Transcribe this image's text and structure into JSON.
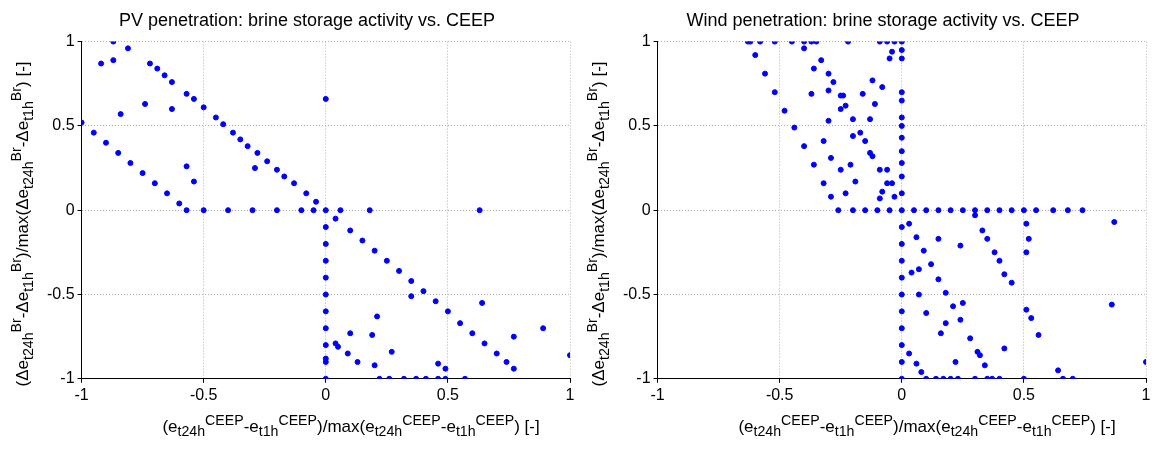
{
  "chart_data": [
    {
      "type": "scatter",
      "title": "PV penetration: brine storage activity vs. CEEP",
      "xlabel": "(e$_{t24h}$$^{CEEP}$-e$_{t1h}$$^{CEEP}$)/max(e$_{t24h}$$^{CEEP}$-e$_{t1h}$$^{CEEP}$) [-]",
      "ylabel": "(Δe$_{t24h}$$^{Br}$-Δe$_{t1h}$$^{Br}$)/max(Δe$_{t24h}$$^{Br}$-Δe$_{t1h}$$^{Br}$) [-]",
      "xlim": [
        -1,
        1
      ],
      "ylim": [
        -1,
        1
      ],
      "xticks": [
        -1,
        -0.5,
        0,
        0.5,
        1
      ],
      "yticks": [
        -1,
        -0.5,
        0,
        0.5,
        1
      ],
      "grid": true,
      "marker": "circle",
      "series": [
        {
          "color": "#0000ff",
          "x": [
            -1,
            -0.95,
            -0.9,
            -0.85,
            -0.8,
            -0.75,
            -0.7,
            -0.65,
            -0.6,
            -0.57,
            -0.5,
            -0.4,
            -0.3,
            -0.2,
            -0.1,
            -0.05,
            0,
            -0.72,
            -0.69,
            -0.66,
            -0.63,
            -0.57,
            -0.54,
            -0.5,
            -0.45,
            -0.42,
            -0.38,
            -0.35,
            -0.32,
            -0.28,
            -0.24,
            -0.2,
            -0.17,
            -0.13,
            -0.08,
            -0.04,
            0.04,
            0.1,
            0.15,
            0.2,
            0.25,
            0.3,
            0.35,
            0.4,
            0.45,
            0.5,
            0.55,
            0.6,
            0.65,
            0.7,
            0.74,
            0.77,
            0,
            0,
            0,
            0,
            0,
            0,
            0,
            0,
            0,
            0,
            0,
            -0.92,
            -0.87,
            -0.87,
            -0.81,
            -0.84,
            -0.74,
            -0.63,
            -0.57,
            -0.54,
            -0.29,
            0,
            0.06,
            0.18,
            0.63,
            0.35,
            0.64,
            0.21,
            0.1,
            0.19,
            0.04,
            0.05,
            0.09,
            0.13,
            0.27,
            0.2,
            0.46,
            0.49,
            0.77,
            0.89,
            1,
            0.22,
            0.26,
            0.32,
            0.37,
            0.41,
            0.46,
            0.49,
            0.57
          ],
          "values": [
            0.52,
            0.46,
            0.4,
            0.34,
            0.28,
            0.22,
            0.16,
            0.1,
            0.04,
            0,
            0,
            0,
            0,
            0,
            0,
            0,
            0,
            0.87,
            0.84,
            0.8,
            0.76,
            0.69,
            0.66,
            0.61,
            0.55,
            0.51,
            0.46,
            0.42,
            0.38,
            0.34,
            0.29,
            0.24,
            0.2,
            0.16,
            0.1,
            0.05,
            -0.05,
            -0.12,
            -0.18,
            -0.24,
            -0.3,
            -0.36,
            -0.42,
            -0.48,
            -0.54,
            -0.6,
            -0.67,
            -0.73,
            -0.79,
            -0.85,
            -0.9,
            -0.94,
            -0.1,
            -0.2,
            -0.3,
            -0.4,
            -0.5,
            -0.6,
            -0.7,
            -0.8,
            -0.88,
            -0.9,
            -1,
            0.87,
            1,
            0.89,
            0.96,
            0.57,
            0.63,
            0.6,
            0.26,
            0.17,
            0.25,
            0.66,
            0,
            0,
            0,
            -0.51,
            -0.55,
            -0.63,
            -0.73,
            -0.74,
            -0.79,
            -0.81,
            -0.85,
            -0.9,
            -0.84,
            -0.92,
            -0.91,
            -0.94,
            -0.75,
            -0.7,
            -0.86,
            -1,
            -1,
            -1,
            -1,
            -1,
            -1,
            -1,
            -1
          ]
        }
      ]
    },
    {
      "type": "scatter",
      "title": "Wind penetration: brine storage activity vs. CEEP",
      "xlabel": "(e$_{t24h}$$^{CEEP}$-e$_{t1h}$$^{CEEP}$)/max(e$_{t24h}$$^{CEEP}$-e$_{t1h}$$^{CEEP}$) [-]",
      "ylabel": "(Δe$_{t24h}$$^{Br}$-Δe$_{t1h}$$^{Br}$)/max(Δe$_{t24h}$$^{Br}$-Δe$_{t1h}$$^{Br}$) [-]",
      "xlim": [
        -1,
        1
      ],
      "ylim": [
        -1,
        1
      ],
      "xticks": [
        -1,
        -0.5,
        0,
        0.5,
        1
      ],
      "yticks": [
        -1,
        -0.5,
        0,
        0.5,
        1
      ],
      "grid": true,
      "marker": "circle",
      "series": [
        {
          "color": "#0000ff",
          "x": [
            -0.63,
            -0.6,
            -0.56,
            -0.52,
            -0.48,
            -0.44,
            -0.4,
            -0.36,
            -0.32,
            -0.29,
            -0.26,
            -0.2,
            -0.15,
            -0.1,
            -0.05,
            0,
            0.05,
            0.1,
            0.15,
            0.2,
            0.25,
            0.3,
            0.35,
            0.4,
            0.45,
            0.5,
            0.55,
            0.62,
            0.68,
            0.74,
            -0.62,
            -0.58,
            -0.52,
            -0.45,
            -0.4,
            -0.37,
            -0.35,
            -0.22,
            -0.09,
            -0.06,
            -0.03,
            0,
            -0.33,
            -0.3,
            -0.28,
            -0.25,
            -0.23,
            -0.2,
            -0.17,
            -0.15,
            -0.12,
            -0.09,
            -0.06,
            -0.03,
            0.03,
            0.06,
            0.09,
            0.12,
            0.15,
            0.18,
            0.21,
            0.24,
            0.28,
            0.31,
            0.34,
            0.37,
            0,
            0,
            0,
            0,
            0,
            0,
            0,
            0,
            0,
            0,
            0,
            0,
            0,
            0,
            0,
            0,
            0,
            0,
            0,
            0,
            0,
            0.3,
            0.33,
            0.35,
            0.38,
            0.4,
            0.42,
            0.45,
            0.03,
            0.06,
            0.08,
            0.1,
            0.14,
            0.17,
            0.2,
            0.23,
            0.3,
            0.35,
            0.4,
            0.5,
            0.66,
            0.7,
            0.51,
            0.52,
            0.51,
            0.51,
            0.53,
            0.56,
            0.87,
            0.86,
            1,
            0.64,
            0.42,
            0.32,
            0.22,
            0.16,
            0.18,
            0.1,
            0.07,
            0.07,
            0.04,
            0.15,
            0.24,
            0.25,
            -0.12,
            -0.16,
            -0.08,
            -0.11,
            -0.13,
            -0.06,
            -0.04,
            -0.08,
            -0.09,
            -0.23,
            -0.19,
            -0.21,
            -0.25,
            -0.29,
            -0.32,
            -0.3,
            -0.37,
            -0.3,
            -0.24,
            -0.25,
            -0.2,
            -0.13,
            -0.05,
            -0.04,
            -0.4,
            -0.36
          ],
          "values": [
            1,
            0.92,
            0.81,
            0.7,
            0.59,
            0.49,
            0.38,
            0.27,
            0.16,
            0.08,
            0,
            0,
            0,
            0,
            0,
            0,
            0,
            0,
            0,
            0,
            0,
            0,
            0,
            0,
            0,
            0,
            0,
            0,
            0,
            0,
            1,
            1,
            1,
            1,
            1,
            1,
            1,
            1,
            1,
            1,
            1,
            1,
            0.89,
            0.81,
            0.76,
            0.68,
            0.62,
            0.54,
            0.46,
            0.41,
            0.32,
            0.24,
            0.16,
            0.08,
            -0.08,
            -0.16,
            -0.24,
            -0.32,
            -0.41,
            -0.49,
            -0.57,
            -0.65,
            -0.76,
            -0.84,
            -0.92,
            -1,
            0.95,
            0.9,
            0.7,
            0.65,
            0.55,
            0.5,
            0.43,
            0.35,
            0.28,
            0.2,
            0.1,
            -0.1,
            -0.2,
            -0.3,
            -0.4,
            -0.5,
            -0.6,
            -0.7,
            -0.8,
            -0.9,
            -1,
            -0.03,
            -0.12,
            -0.17,
            -0.25,
            -0.3,
            -0.38,
            -0.43,
            -0.85,
            -0.91,
            -0.96,
            -1,
            -1,
            -1,
            -1,
            -1,
            -1,
            -1,
            -1,
            -1,
            -1,
            -1,
            -0.08,
            -0.17,
            -0.25,
            -0.59,
            -0.64,
            -0.74,
            -0.07,
            -0.56,
            -0.9,
            -0.95,
            -0.82,
            -0.86,
            -0.9,
            -0.73,
            -0.67,
            -0.61,
            -0.5,
            -0.35,
            -0.37,
            -0.17,
            -0.21,
            -0.55,
            0.77,
            0.69,
            0.73,
            0.63,
            0.54,
            0.24,
            0.16,
            0.11,
            0.07,
            0.1,
            0.17,
            0.27,
            0.24,
            0.31,
            0.41,
            0.53,
            0.69,
            0.71,
            0.68,
            0.6,
            0.44,
            0.34,
            0.9,
            0.94,
            0.96,
            0.84
          ]
        }
      ]
    }
  ]
}
